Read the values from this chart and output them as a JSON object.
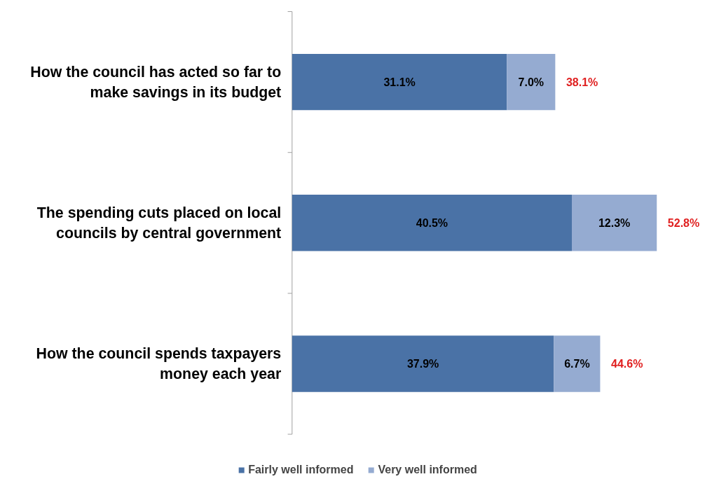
{
  "chart_data": {
    "type": "bar",
    "orientation": "horizontal",
    "stacked": true,
    "legend": "bottom",
    "grid": false,
    "categories": [
      "How the council has acted so far to make savings in its budget",
      "The spending cuts placed on local councils by central government",
      "How the council spends taxpayers money each year"
    ],
    "series": [
      {
        "name": "Fairly well informed",
        "color": "#4a72a6",
        "values": [
          31.1,
          40.5,
          37.9
        ],
        "value_labels": [
          "31.1%",
          "40.5%",
          "37.9%"
        ]
      },
      {
        "name": "Very well informed",
        "color": "#95abd1",
        "values": [
          7.0,
          12.3,
          6.7
        ],
        "value_labels": [
          "7.0%",
          "12.3%",
          "6.7%"
        ]
      }
    ],
    "totals": [
      "38.1%",
      "52.8%",
      "44.6%"
    ]
  }
}
